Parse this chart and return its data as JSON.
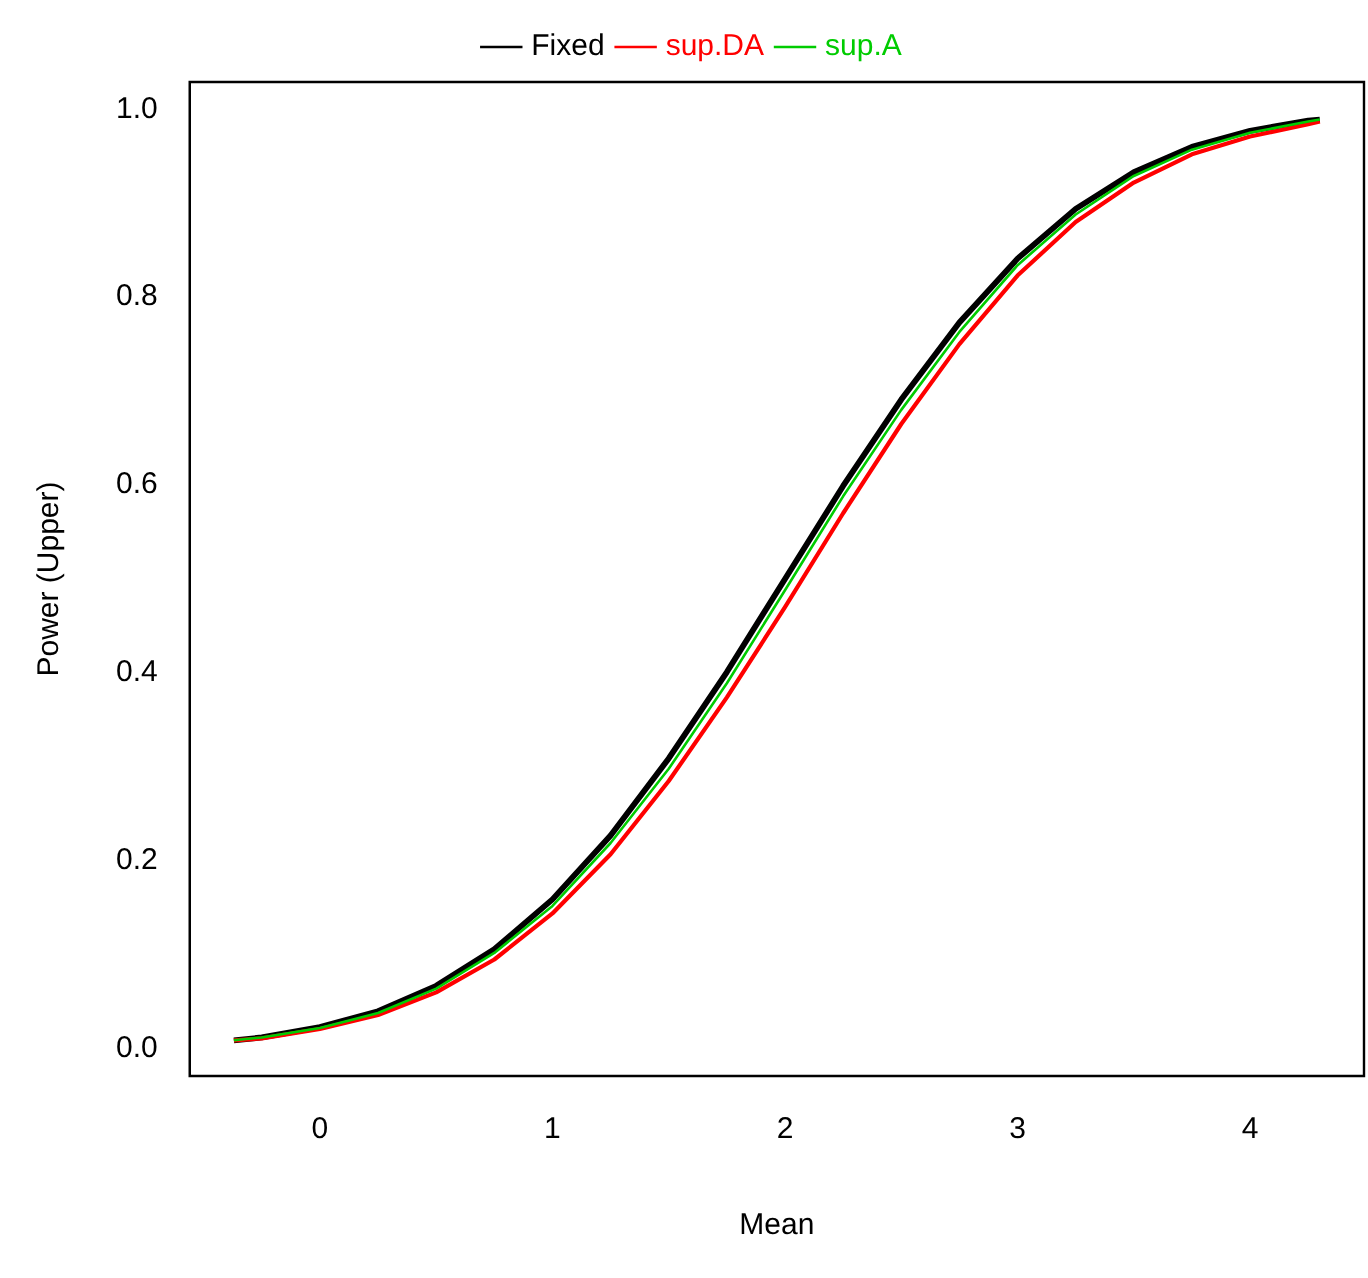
{
  "chart_data": {
    "type": "line",
    "xlabel": "Mean",
    "ylabel": "Power (Upper)",
    "x": [
      -0.37,
      -0.25,
      0,
      0.25,
      0.5,
      0.75,
      1,
      1.25,
      1.5,
      1.75,
      2,
      2.25,
      2.5,
      2.75,
      3,
      3.25,
      3.5,
      3.75,
      4,
      4.25,
      4.3
    ],
    "series": [
      {
        "name": "Fixed",
        "color": "#000000",
        "values": [
          0.009,
          0.012,
          0.023,
          0.04,
          0.067,
          0.106,
          0.159,
          0.227,
          0.309,
          0.401,
          0.5,
          0.599,
          0.691,
          0.773,
          0.841,
          0.894,
          0.933,
          0.96,
          0.977,
          0.988,
          0.989
        ]
      },
      {
        "name": "sup.DA",
        "color": "#ff0000",
        "values": [
          0.009,
          0.011,
          0.021,
          0.036,
          0.06,
          0.095,
          0.144,
          0.207,
          0.285,
          0.374,
          0.47,
          0.57,
          0.665,
          0.75,
          0.823,
          0.88,
          0.922,
          0.952,
          0.971,
          0.984,
          0.987
        ]
      },
      {
        "name": "sup.A",
        "color": "#00cc00",
        "values": [
          0.009,
          0.012,
          0.022,
          0.038,
          0.064,
          0.102,
          0.152,
          0.219,
          0.298,
          0.389,
          0.488,
          0.588,
          0.68,
          0.763,
          0.834,
          0.888,
          0.929,
          0.957,
          0.975,
          0.987,
          0.989
        ]
      }
    ],
    "xlim": [
      -0.56,
      4.49
    ],
    "ylim": [
      -0.029,
      1.029
    ],
    "xticks": [
      0,
      1,
      2,
      3,
      4
    ],
    "yticks": [
      {
        "value": 0,
        "label": "0.0"
      },
      {
        "value": 0.2,
        "label": "0.2"
      },
      {
        "value": 0.4,
        "label": "0.4"
      },
      {
        "value": 0.6,
        "label": "0.6"
      },
      {
        "value": 0.8,
        "label": "0.8"
      },
      {
        "value": 1,
        "label": "1.0"
      }
    ],
    "grid": false,
    "legend": "top",
    "marker": "none",
    "line_style": "solid"
  }
}
